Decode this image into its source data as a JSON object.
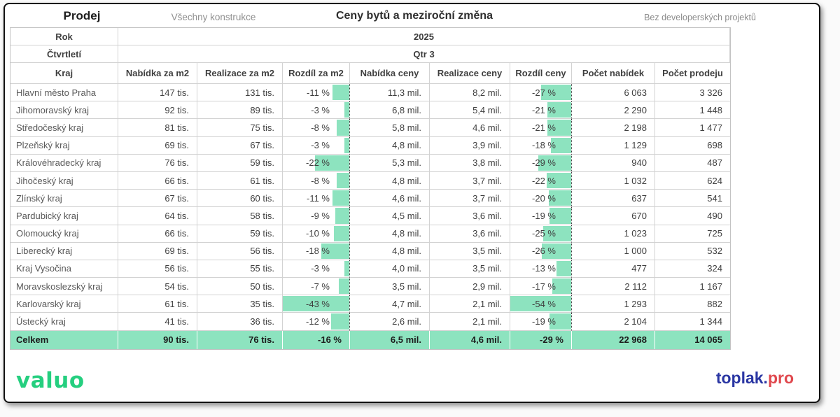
{
  "header": {
    "left_title": "Prodej",
    "left_subtitle": "Všechny konstrukce",
    "title": "Ceny bytů a meziroční změna",
    "right_subtitle": "Bez developerských projektů"
  },
  "filters": {
    "rok_label": "Rok",
    "rok_value": "2025",
    "ctvrtleti_label": "Čtvrtletí",
    "ctvrtleti_value": "Qtr 3"
  },
  "footer": {
    "logo_left": "valuo",
    "logo_right_primary": "toplak.",
    "logo_right_secondary": "pro"
  },
  "colors": {
    "accent_green": "#8DE3BF",
    "bar_green": "#8DE3BF",
    "logo_green": "#25CF7F",
    "logo_blue": "#2A36A3",
    "logo_red": "#E0484E"
  },
  "chart_data": {
    "type": "table",
    "title": "Ceny bytů a meziroční změna",
    "columns": [
      "Kraj",
      "Nabídka za m2",
      "Realizace za m2",
      "Rozdíl za m2",
      "Nabídka ceny",
      "Realizace ceny",
      "Rozdíl ceny",
      "Počet nabídek",
      "Počet prodeju"
    ],
    "bar_max": {
      "rozdil_m2": 43,
      "rozdil_ceny": 54
    },
    "rows": [
      {
        "kraj": "Hlavní město Praha",
        "nabidka_m2": "147 tis.",
        "realizace_m2": "131 tis.",
        "rozdil_m2": "-11 %",
        "rozdil_m2_pct": -11,
        "nabidka_ceny": "11,3 mil.",
        "realizace_ceny": "8,2 mil.",
        "rozdil_ceny": "-27 %",
        "rozdil_ceny_pct": -27,
        "pocet_nabidek": "6 063",
        "pocet_prodeju": "3 326"
      },
      {
        "kraj": "Jihomoravský kraj",
        "nabidka_m2": "92 tis.",
        "realizace_m2": "89 tis.",
        "rozdil_m2": "-3 %",
        "rozdil_m2_pct": -3,
        "nabidka_ceny": "6,8 mil.",
        "realizace_ceny": "5,4 mil.",
        "rozdil_ceny": "-21 %",
        "rozdil_ceny_pct": -21,
        "pocet_nabidek": "2 290",
        "pocet_prodeju": "1 448"
      },
      {
        "kraj": "Středočeský kraj",
        "nabidka_m2": "81 tis.",
        "realizace_m2": "75 tis.",
        "rozdil_m2": "-8 %",
        "rozdil_m2_pct": -8,
        "nabidka_ceny": "5,8 mil.",
        "realizace_ceny": "4,6 mil.",
        "rozdil_ceny": "-21 %",
        "rozdil_ceny_pct": -21,
        "pocet_nabidek": "2 198",
        "pocet_prodeju": "1 477"
      },
      {
        "kraj": "Plzeňský kraj",
        "nabidka_m2": "69 tis.",
        "realizace_m2": "67 tis.",
        "rozdil_m2": "-3 %",
        "rozdil_m2_pct": -3,
        "nabidka_ceny": "4,8 mil.",
        "realizace_ceny": "3,9 mil.",
        "rozdil_ceny": "-18 %",
        "rozdil_ceny_pct": -18,
        "pocet_nabidek": "1 129",
        "pocet_prodeju": "698"
      },
      {
        "kraj": "Královéhradecký kraj",
        "nabidka_m2": "76 tis.",
        "realizace_m2": "59 tis.",
        "rozdil_m2": "-22 %",
        "rozdil_m2_pct": -22,
        "nabidka_ceny": "5,3 mil.",
        "realizace_ceny": "3,8 mil.",
        "rozdil_ceny": "-29 %",
        "rozdil_ceny_pct": -29,
        "pocet_nabidek": "940",
        "pocet_prodeju": "487"
      },
      {
        "kraj": "Jihočeský kraj",
        "nabidka_m2": "66 tis.",
        "realizace_m2": "61 tis.",
        "rozdil_m2": "-8 %",
        "rozdil_m2_pct": -8,
        "nabidka_ceny": "4,8 mil.",
        "realizace_ceny": "3,7 mil.",
        "rozdil_ceny": "-22 %",
        "rozdil_ceny_pct": -22,
        "pocet_nabidek": "1 032",
        "pocet_prodeju": "624"
      },
      {
        "kraj": "Zlínský kraj",
        "nabidka_m2": "67 tis.",
        "realizace_m2": "60 tis.",
        "rozdil_m2": "-11 %",
        "rozdil_m2_pct": -11,
        "nabidka_ceny": "4,6 mil.",
        "realizace_ceny": "3,7 mil.",
        "rozdil_ceny": "-20 %",
        "rozdil_ceny_pct": -20,
        "pocet_nabidek": "637",
        "pocet_prodeju": "541"
      },
      {
        "kraj": "Pardubický kraj",
        "nabidka_m2": "64 tis.",
        "realizace_m2": "58 tis.",
        "rozdil_m2": "-9 %",
        "rozdil_m2_pct": -9,
        "nabidka_ceny": "4,5 mil.",
        "realizace_ceny": "3,6 mil.",
        "rozdil_ceny": "-19 %",
        "rozdil_ceny_pct": -19,
        "pocet_nabidek": "670",
        "pocet_prodeju": "490"
      },
      {
        "kraj": "Olomoucký kraj",
        "nabidka_m2": "66 tis.",
        "realizace_m2": "59 tis.",
        "rozdil_m2": "-10 %",
        "rozdil_m2_pct": -10,
        "nabidka_ceny": "4,8 mil.",
        "realizace_ceny": "3,6 mil.",
        "rozdil_ceny": "-25 %",
        "rozdil_ceny_pct": -25,
        "pocet_nabidek": "1 023",
        "pocet_prodeju": "725"
      },
      {
        "kraj": "Liberecký kraj",
        "nabidka_m2": "69 tis.",
        "realizace_m2": "56 tis.",
        "rozdil_m2": "-18 %",
        "rozdil_m2_pct": -18,
        "nabidka_ceny": "4,8 mil.",
        "realizace_ceny": "3,5 mil.",
        "rozdil_ceny": "-26 %",
        "rozdil_ceny_pct": -26,
        "pocet_nabidek": "1 000",
        "pocet_prodeju": "532"
      },
      {
        "kraj": "Kraj Vysočina",
        "nabidka_m2": "56 tis.",
        "realizace_m2": "55 tis.",
        "rozdil_m2": "-3 %",
        "rozdil_m2_pct": -3,
        "nabidka_ceny": "4,0 mil.",
        "realizace_ceny": "3,5 mil.",
        "rozdil_ceny": "-13 %",
        "rozdil_ceny_pct": -13,
        "pocet_nabidek": "477",
        "pocet_prodeju": "324"
      },
      {
        "kraj": "Moravskoslezský kraj",
        "nabidka_m2": "54 tis.",
        "realizace_m2": "50 tis.",
        "rozdil_m2": "-7 %",
        "rozdil_m2_pct": -7,
        "nabidka_ceny": "3,5 mil.",
        "realizace_ceny": "2,9 mil.",
        "rozdil_ceny": "-17 %",
        "rozdil_ceny_pct": -17,
        "pocet_nabidek": "2 112",
        "pocet_prodeju": "1 167"
      },
      {
        "kraj": "Karlovarský kraj",
        "nabidka_m2": "61 tis.",
        "realizace_m2": "35 tis.",
        "rozdil_m2": "-43 %",
        "rozdil_m2_pct": -43,
        "nabidka_ceny": "4,7 mil.",
        "realizace_ceny": "2,1 mil.",
        "rozdil_ceny": "-54 %",
        "rozdil_ceny_pct": -54,
        "pocet_nabidek": "1 293",
        "pocet_prodeju": "882"
      },
      {
        "kraj": "Ústecký kraj",
        "nabidka_m2": "41 tis.",
        "realizace_m2": "36 tis.",
        "rozdil_m2": "-12 %",
        "rozdil_m2_pct": -12,
        "nabidka_ceny": "2,6 mil.",
        "realizace_ceny": "2,1 mil.",
        "rozdil_ceny": "-19 %",
        "rozdil_ceny_pct": -19,
        "pocet_nabidek": "2 104",
        "pocet_prodeju": "1 344"
      }
    ],
    "total": {
      "kraj": "Celkem",
      "nabidka_m2": "90 tis.",
      "realizace_m2": "76 tis.",
      "rozdil_m2": "-16 %",
      "nabidka_ceny": "6,5 mil.",
      "realizace_ceny": "4,6 mil.",
      "rozdil_ceny": "-29 %",
      "pocet_nabidek": "22 968",
      "pocet_prodeju": "14 065"
    }
  }
}
